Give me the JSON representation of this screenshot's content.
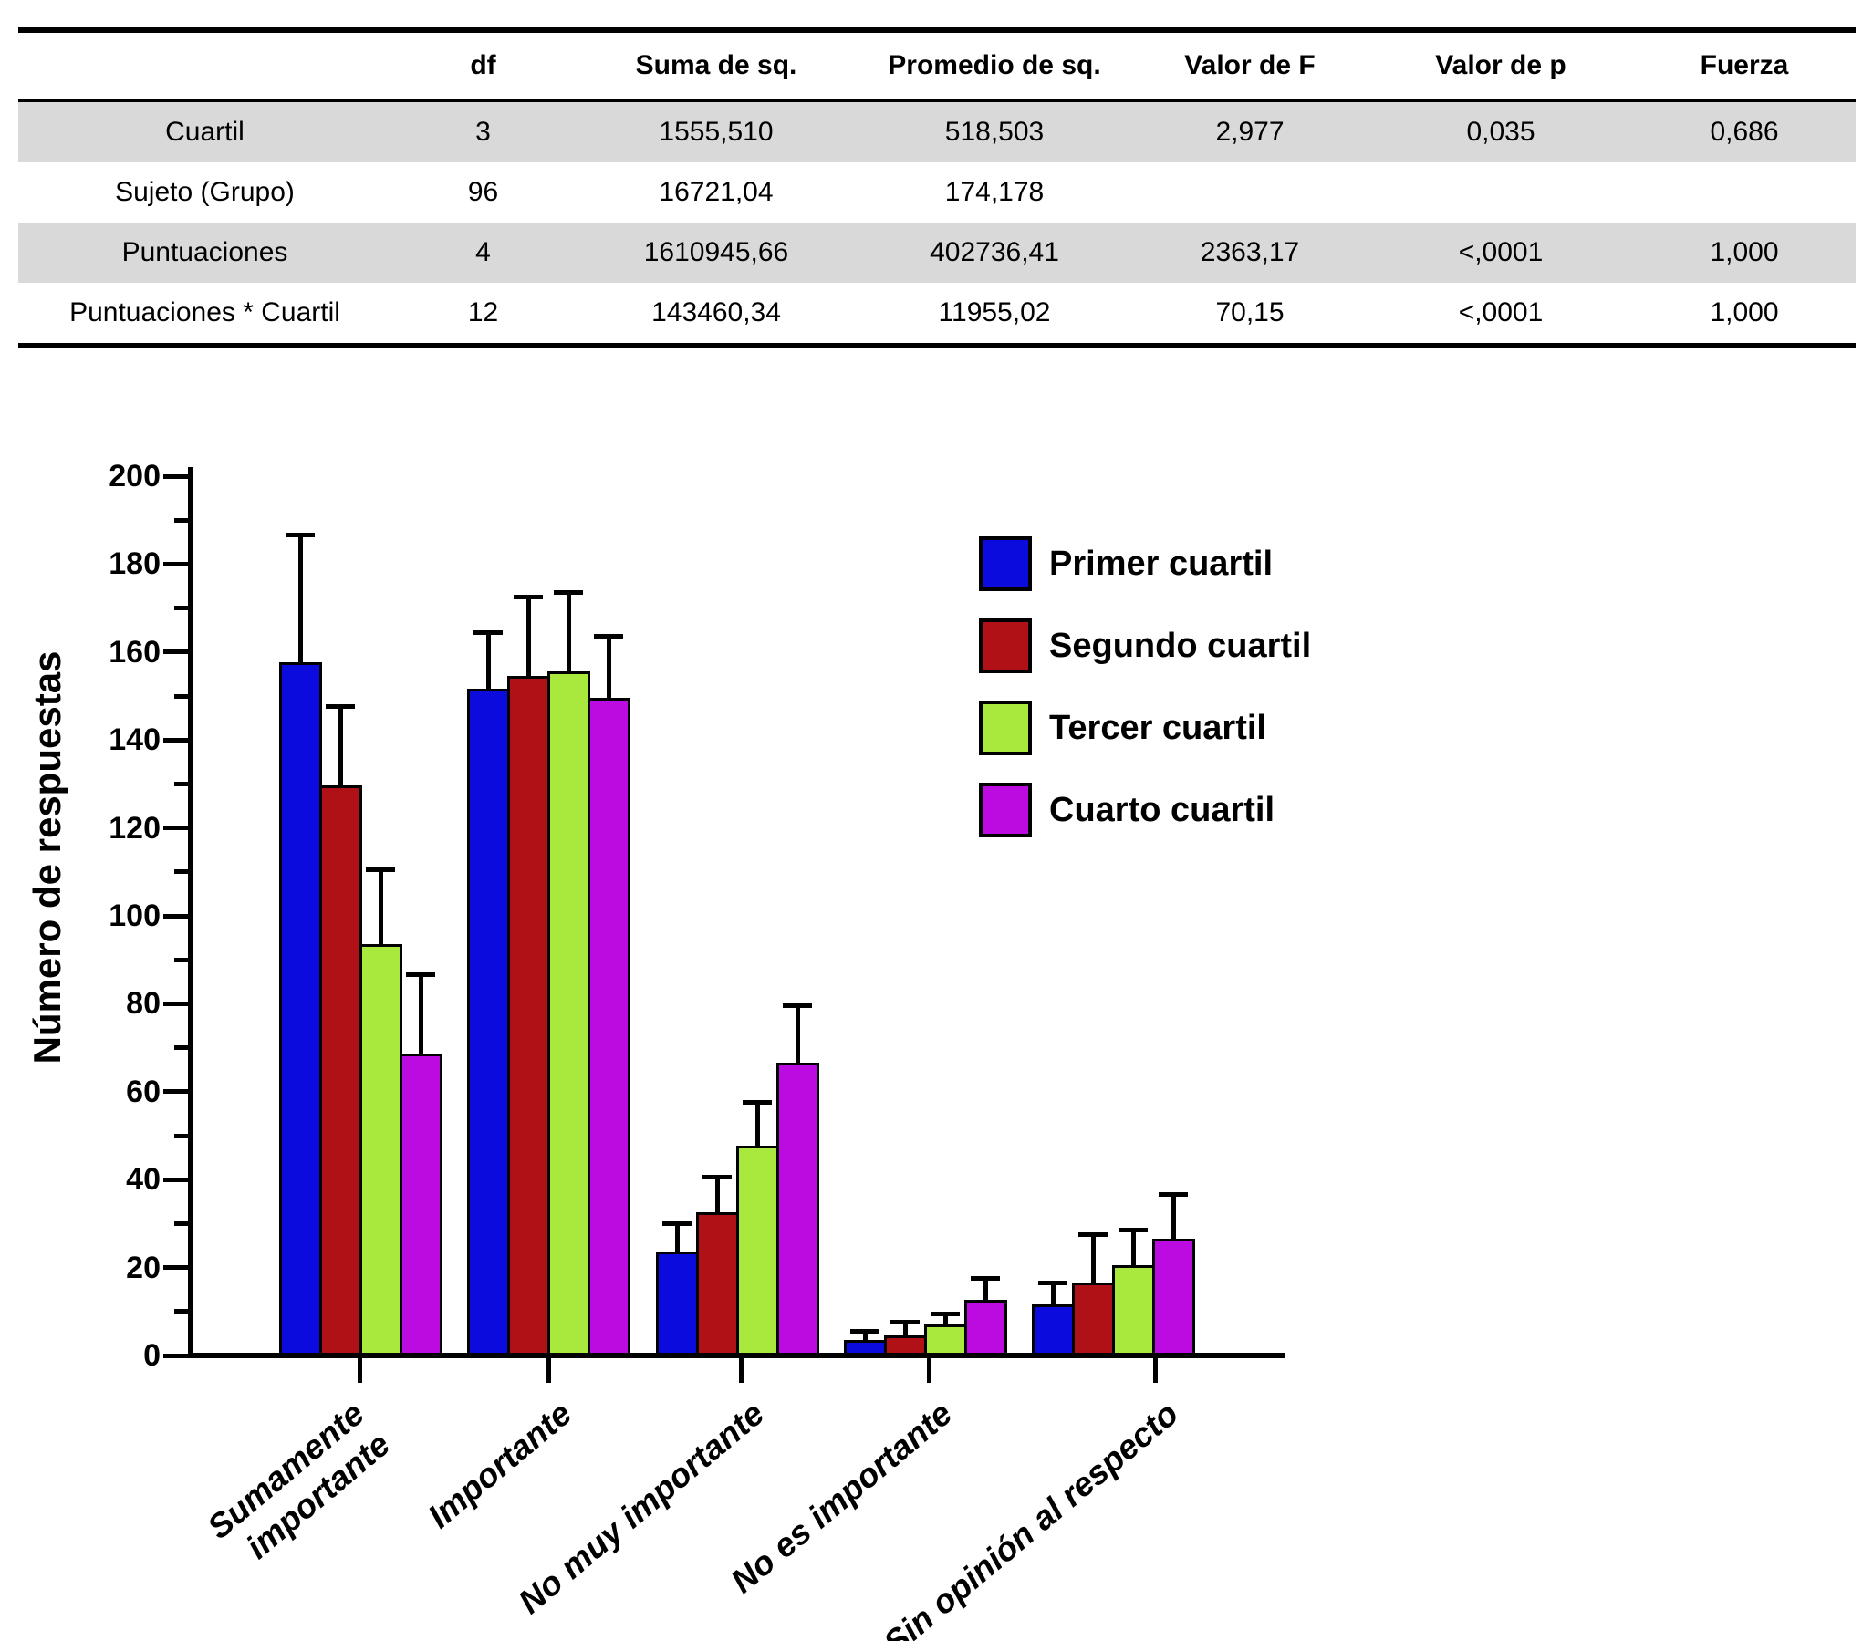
{
  "table": {
    "columns": [
      "",
      "df",
      "Suma de sq.",
      "Promedio de sq.",
      "Valor de F",
      "Valor de p",
      "Fuerza"
    ],
    "rows": [
      {
        "label": "Cuartil",
        "values": [
          "3",
          "1555,510",
          "518,503",
          "2,977",
          "0,035",
          "0,686"
        ]
      },
      {
        "label": "Sujeto (Grupo)",
        "values": [
          "96",
          "16721,04",
          "174,178",
          "",
          "",
          ""
        ]
      },
      {
        "label": "Puntuaciones",
        "values": [
          "4",
          "1610945,66",
          "402736,41",
          "2363,17",
          "<,0001",
          "1,000"
        ]
      },
      {
        "label": "Puntuaciones * Cuartil",
        "values": [
          "12",
          "143460,34",
          "11955,02",
          "70,15",
          "<,0001",
          "1,000"
        ]
      }
    ],
    "shade_color": "#D9D9D9"
  },
  "chart_data": {
    "type": "bar",
    "title": "",
    "xlabel": "",
    "ylabel": "Número de respuestas",
    "ylim": [
      0,
      200
    ],
    "ytick_step": 20,
    "yticks": [
      0,
      20,
      40,
      60,
      80,
      100,
      120,
      140,
      160,
      180,
      200
    ],
    "grid": false,
    "error_bars": "upper, black caps",
    "legend_position": "upper right inside plot",
    "categories": [
      "Sumamente importante",
      "Importante",
      "No muy importante",
      "No es importante",
      "Sin opinión al respecto"
    ],
    "category_lines": [
      [
        "Sumamente",
        "importante"
      ],
      [
        "Importante"
      ],
      [
        "No muy importante"
      ],
      [
        "No es importante"
      ],
      [
        "Sin opinión al respecto"
      ]
    ],
    "series": [
      {
        "name": "Primer cuartil",
        "color": "#0B0BDE",
        "values": [
          157,
          151,
          23,
          3,
          11
        ],
        "errors": [
          29,
          13,
          6.5,
          2,
          5
        ]
      },
      {
        "name": "Segundo cuartil",
        "color": "#B01116",
        "values": [
          129,
          154,
          32,
          4,
          16
        ],
        "errors": [
          18,
          18,
          8,
          3,
          11
        ]
      },
      {
        "name": "Tercer cuartil",
        "color": "#A9E83D",
        "values": [
          93,
          155,
          47,
          6.5,
          20
        ],
        "errors": [
          17,
          18,
          10,
          2.5,
          8
        ]
      },
      {
        "name": "Cuarto cuartil",
        "color": "#BC0BE0",
        "values": [
          68,
          149,
          66,
          12,
          26
        ],
        "errors": [
          18,
          14,
          13,
          5,
          10
        ]
      }
    ]
  }
}
